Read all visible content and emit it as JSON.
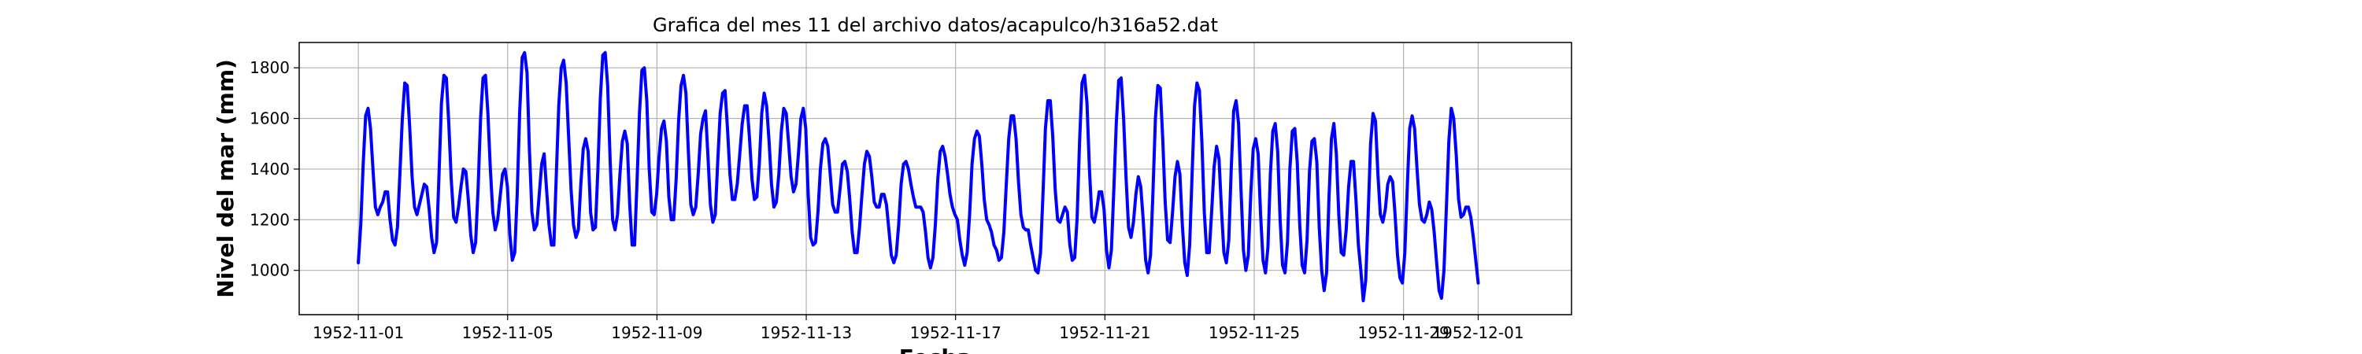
{
  "chart_data": {
    "type": "line",
    "title": "Grafica del mes 11 del archivo datos/acapulco/h316a52.dat",
    "xlabel": "Fecha",
    "ylabel": "Nivel del mar (mm)",
    "x_start": "1952-11-01T00:00",
    "x_end": "1952-12-01T00:00",
    "xlim": [
      "1952-10-30T10:00",
      "1952-12-03T12:00"
    ],
    "ylim": [
      825,
      1900
    ],
    "xticks": [
      "1952-11-01",
      "1952-11-05",
      "1952-11-09",
      "1952-11-13",
      "1952-11-17",
      "1952-11-21",
      "1952-11-25",
      "1952-11-29",
      "1952-12-01"
    ],
    "yticks": [
      1000,
      1200,
      1400,
      1600,
      1800
    ],
    "grid": true,
    "line_color": "#0000ff",
    "series": [
      {
        "values": [
          1030,
          1180,
          1420,
          1610,
          1640,
          1560,
          1400,
          1250,
          1220,
          1250,
          1270,
          1310,
          1310,
          1200,
          1120,
          1100,
          1170,
          1380,
          1600,
          1740,
          1730,
          1570,
          1370,
          1250,
          1220,
          1260,
          1300,
          1340,
          1330,
          1240,
          1130,
          1070,
          1110,
          1380,
          1660,
          1770,
          1760,
          1580,
          1360,
          1210,
          1190,
          1250,
          1330,
          1400,
          1390,
          1280,
          1140,
          1070,
          1110,
          1320,
          1600,
          1760,
          1770,
          1620,
          1400,
          1230,
          1160,
          1200,
          1290,
          1380,
          1400,
          1330,
          1140,
          1040,
          1070,
          1300,
          1620,
          1840,
          1860,
          1780,
          1470,
          1230,
          1160,
          1180,
          1300,
          1420,
          1460,
          1320,
          1180,
          1100,
          1100,
          1380,
          1650,
          1800,
          1830,
          1740,
          1530,
          1320,
          1180,
          1130,
          1160,
          1340,
          1480,
          1520,
          1470,
          1230,
          1160,
          1170,
          1400,
          1680,
          1850,
          1860,
          1730,
          1430,
          1200,
          1160,
          1220,
          1380,
          1510,
          1550,
          1500,
          1260,
          1100,
          1100,
          1350,
          1620,
          1790,
          1800,
          1670,
          1400,
          1230,
          1220,
          1300,
          1450,
          1560,
          1590,
          1510,
          1290,
          1200,
          1200,
          1360,
          1590,
          1730,
          1770,
          1700,
          1470,
          1260,
          1220,
          1250,
          1380,
          1540,
          1600,
          1630,
          1450,
          1260,
          1190,
          1220,
          1430,
          1620,
          1700,
          1710,
          1560,
          1380,
          1280,
          1280,
          1340,
          1460,
          1580,
          1650,
          1650,
          1520,
          1360,
          1280,
          1290,
          1420,
          1620,
          1700,
          1650,
          1510,
          1340,
          1250,
          1270,
          1380,
          1550,
          1640,
          1620,
          1500,
          1370,
          1310,
          1340,
          1460,
          1600,
          1640,
          1560,
          1300,
          1130,
          1100,
          1110,
          1230,
          1400,
          1500,
          1520,
          1490,
          1380,
          1260,
          1230,
          1230,
          1320,
          1420,
          1430,
          1390,
          1280,
          1150,
          1070,
          1070,
          1170,
          1300,
          1420,
          1470,
          1450,
          1370,
          1270,
          1250,
          1250,
          1300,
          1300,
          1260,
          1160,
          1060,
          1030,
          1060,
          1180,
          1340,
          1420,
          1430,
          1400,
          1340,
          1290,
          1250,
          1250,
          1250,
          1230,
          1150,
          1050,
          1010,
          1050,
          1180,
          1360,
          1470,
          1490,
          1450,
          1380,
          1300,
          1250,
          1220,
          1200,
          1120,
          1060,
          1020,
          1070,
          1220,
          1420,
          1520,
          1550,
          1530,
          1420,
          1280,
          1200,
          1180,
          1150,
          1100,
          1080,
          1040,
          1050,
          1150,
          1340,
          1520,
          1610,
          1610,
          1520,
          1350,
          1220,
          1170,
          1160,
          1160,
          1100,
          1050,
          1000,
          990,
          1070,
          1300,
          1560,
          1670,
          1670,
          1530,
          1320,
          1200,
          1190,
          1220,
          1250,
          1230,
          1100,
          1040,
          1050,
          1210,
          1510,
          1740,
          1770,
          1660,
          1400,
          1210,
          1190,
          1240,
          1310,
          1310,
          1240,
          1080,
          1010,
          1080,
          1320,
          1580,
          1750,
          1760,
          1600,
          1360,
          1170,
          1130,
          1190,
          1300,
          1370,
          1330,
          1200,
          1040,
          990,
          1060,
          1310,
          1600,
          1730,
          1720,
          1520,
          1270,
          1120,
          1110,
          1230,
          1370,
          1430,
          1380,
          1180,
          1030,
          980,
          1100,
          1380,
          1650,
          1740,
          1710,
          1510,
          1230,
          1070,
          1070,
          1230,
          1410,
          1490,
          1440,
          1240,
          1070,
          1030,
          1120,
          1400,
          1630,
          1670,
          1580,
          1320,
          1080,
          1000,
          1060,
          1300,
          1480,
          1520,
          1460,
          1220,
          1040,
          990,
          1090,
          1380,
          1550,
          1580,
          1470,
          1200,
          1020,
          990,
          1110,
          1400,
          1550,
          1560,
          1430,
          1180,
          1020,
          990,
          1120,
          1390,
          1510,
          1520,
          1430,
          1170,
          1000,
          920,
          990,
          1290,
          1520,
          1580,
          1460,
          1220,
          1070,
          1060,
          1160,
          1330,
          1430,
          1430,
          1280,
          1100,
          1000,
          880,
          960,
          1220,
          1500,
          1620,
          1590,
          1380,
          1220,
          1190,
          1240,
          1340,
          1370,
          1350,
          1220,
          1060,
          970,
          950,
          1070,
          1330,
          1560,
          1610,
          1560,
          1400,
          1260,
          1200,
          1190,
          1220,
          1270,
          1240,
          1150,
          1030,
          920,
          890,
          1000,
          1250,
          1510,
          1640,
          1600,
          1460,
          1280,
          1210,
          1220,
          1250,
          1250,
          1210,
          1130,
          1040,
          950
        ]
      }
    ]
  }
}
